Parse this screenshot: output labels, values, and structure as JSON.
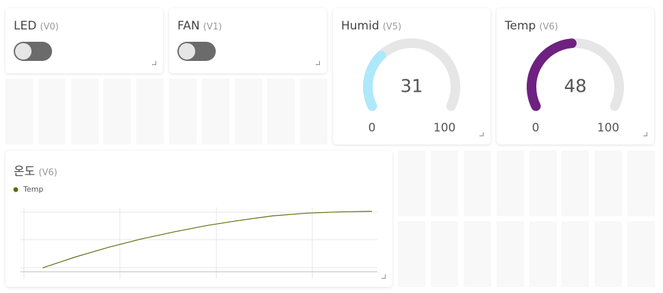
{
  "widgets": [
    {
      "title": "LED",
      "pin": "(V0)"
    },
    {
      "title": "FAN",
      "pin": "(V1)"
    },
    {
      "title": "Humid",
      "pin": "(V5)",
      "value": 31,
      "min": 0,
      "max": 100,
      "color": "#aee8fb"
    },
    {
      "title": "Temp",
      "pin": "(V6)",
      "value": 48,
      "min": 0,
      "max": 100,
      "color": "#6e2180"
    }
  ],
  "chart_data": {
    "type": "line",
    "title": "온도",
    "pin": "(V6)",
    "series": [
      {
        "name": "Temp",
        "color": "#5b6b0c",
        "values": [
          6,
          23,
          38,
          51,
          62,
          72,
          80,
          87,
          91,
          93,
          94
        ]
      }
    ],
    "ylim": [
      0,
      100
    ]
  }
}
